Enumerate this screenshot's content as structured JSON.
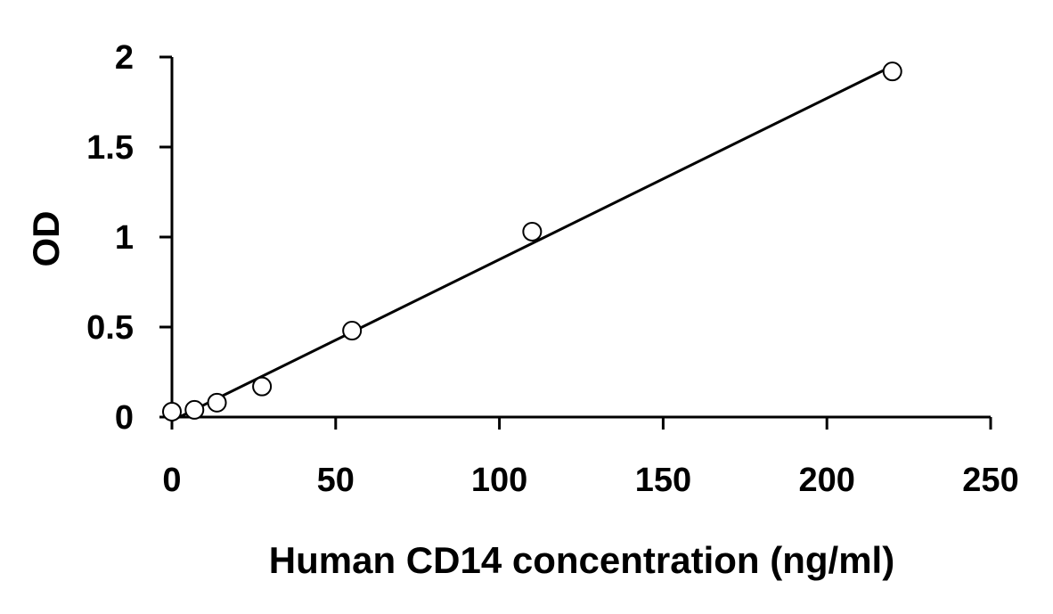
{
  "chart_data": {
    "type": "scatter",
    "title": "",
    "xlabel": "Human CD14 concentration (ng/ml)",
    "ylabel": "OD",
    "xlim": [
      0,
      250
    ],
    "ylim": [
      0,
      2
    ],
    "x_ticks": [
      "0",
      "50",
      "100",
      "150",
      "200",
      "250"
    ],
    "y_ticks": [
      "0",
      "0.5",
      "1",
      "1.5",
      "2"
    ],
    "grid": false,
    "legend": "none",
    "series": [
      {
        "marker": "open-circle",
        "x": [
          0,
          6.875,
          13.75,
          27.5,
          55,
          110,
          220
        ],
        "y": [
          0.03,
          0.04,
          0.08,
          0.17,
          0.48,
          1.03,
          1.92
        ]
      }
    ],
    "fit_line": {
      "type": "linear",
      "x": [
        0,
        220
      ],
      "y": [
        -0.02,
        1.95
      ]
    },
    "colors": {
      "axis": "#000000",
      "line": "#000000",
      "marker_stroke": "#000000",
      "marker_fill": "#ffffff"
    }
  }
}
